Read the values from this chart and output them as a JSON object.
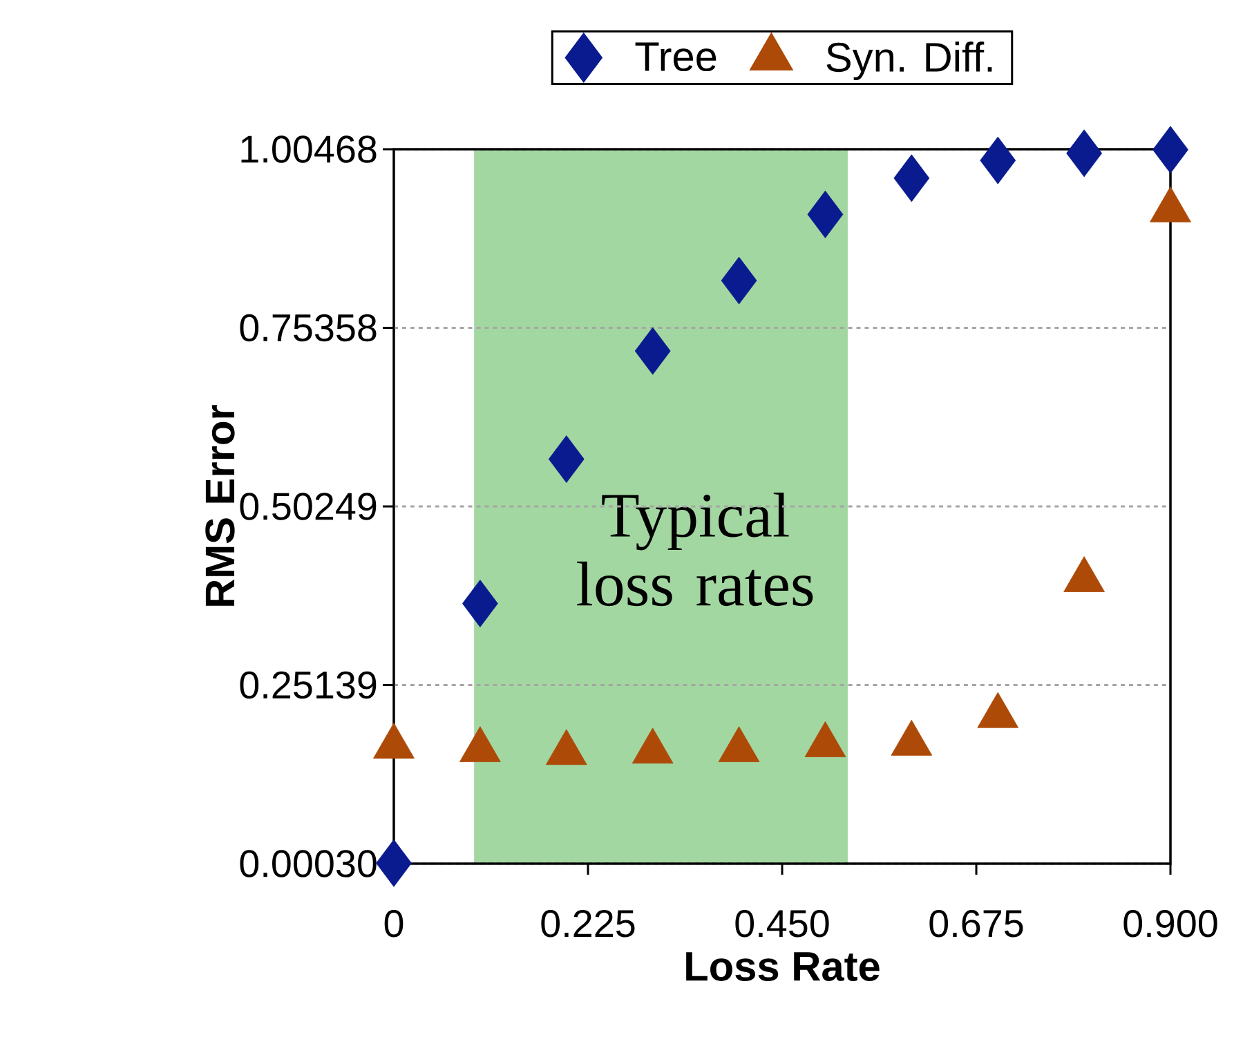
{
  "chart_data": {
    "type": "scatter",
    "xlabel": "Loss Rate",
    "ylabel": "RMS Error",
    "x": [
      0,
      0.1,
      0.2,
      0.3,
      0.4,
      0.5,
      0.6,
      0.7,
      0.8,
      0.9
    ],
    "series": [
      {
        "name": "Tree",
        "color": "#0a1a8f",
        "marker": "diamond",
        "values": [
          0.001,
          0.366,
          0.569,
          0.721,
          0.82,
          0.913,
          0.964,
          0.989,
          0.999,
          1.004
        ]
      },
      {
        "name": "Syn. Diff.",
        "color": "#ad4a08",
        "marker": "triangle",
        "values": [
          0.165,
          0.16,
          0.156,
          0.158,
          0.16,
          0.167,
          0.169,
          0.208,
          0.399,
          0.919
        ]
      }
    ],
    "xlim": [
      0,
      0.9
    ],
    "ylim": [
      0.0003,
      1.00468
    ],
    "xticks": [
      0,
      {
        "value": 0.225,
        "label": "0.225"
      },
      {
        "value": 0.45,
        "label": "0.450"
      },
      {
        "value": 0.675,
        "label": "0.675"
      },
      {
        "value": 0.9,
        "label": "0.900"
      }
    ],
    "yticks": [
      {
        "value": 0.0003,
        "label": "0.00030"
      },
      0.25139,
      0.50249,
      0.75358,
      1.00468
    ],
    "bands": [
      {
        "axis": "x",
        "from": 0.093,
        "to": 0.526,
        "label": "Typical loss rates",
        "color": "#a3d7a1"
      }
    ],
    "grid": "y",
    "legend": "top"
  }
}
